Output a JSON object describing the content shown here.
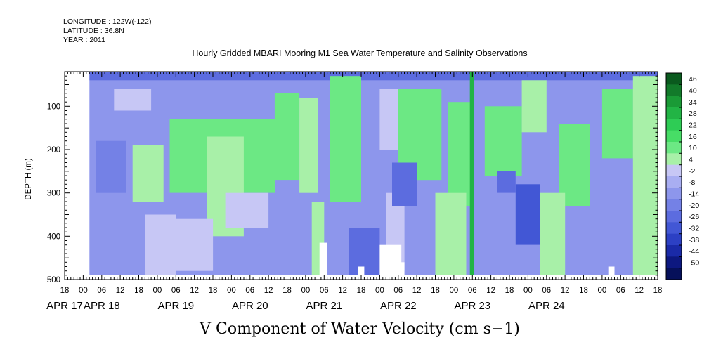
{
  "header": {
    "longitude": "LONGITUDE : 122W(-122)",
    "latitude": "LATITUDE : 36.8N",
    "year": "YEAR : 2011"
  },
  "chart_data": {
    "type": "heatmap",
    "title": "Hourly Gridded MBARI Mooring M1 Sea Water Temperature and Salinity Observations",
    "variable_title": "V Component of Water Velocity (cm s−1)",
    "ylabel": "DEPTH (m)",
    "ylim": [
      500,
      20
    ],
    "y_ticks": [
      "100",
      "200",
      "300",
      "400",
      "500"
    ],
    "y_tick_values": [
      100,
      200,
      300,
      400,
      500
    ],
    "x_range_hours": [
      -6,
      186
    ],
    "x_hour_ticks": [
      "18",
      "00",
      "06",
      "12",
      "18",
      "00",
      "06",
      "12",
      "18",
      "00",
      "06",
      "12",
      "18",
      "00",
      "06",
      "12",
      "18",
      "00",
      "06",
      "12",
      "18",
      "00",
      "06",
      "12",
      "18",
      "00",
      "06",
      "12",
      "18",
      "00",
      "06",
      "12",
      "18"
    ],
    "x_day_labels": [
      {
        "label": "APR 17",
        "hour": -6
      },
      {
        "label": "APR 18",
        "hour": 6
      },
      {
        "label": "APR 19",
        "hour": 30
      },
      {
        "label": "APR 20",
        "hour": 54
      },
      {
        "label": "APR 21",
        "hour": 78
      },
      {
        "label": "APR 22",
        "hour": 102
      },
      {
        "label": "APR 23",
        "hour": 126
      },
      {
        "label": "APR 24",
        "hour": 150
      }
    ],
    "data_start_hour": 2,
    "data_depth_range": [
      20,
      490
    ],
    "colorbar_labels": [
      "46",
      "40",
      "34",
      "28",
      "22",
      "16",
      "10",
      "4",
      "-2",
      "-8",
      "-14",
      "-20",
      "-26",
      "-32",
      "-38",
      "-44",
      "-50"
    ],
    "colorbar_range": [
      -50,
      52
    ],
    "colorbar_colors": [
      "#0a5a1e",
      "#127a2a",
      "#1a9a36",
      "#22b445",
      "#2ecc55",
      "#47dd66",
      "#6ce884",
      "#a8f0a8",
      "#c7c7f5",
      "#a9aef2",
      "#8d96ec",
      "#7481e6",
      "#5c6cdf",
      "#4257d5",
      "#2c40c4",
      "#1a2aa8",
      "#0d1880",
      "#06105a"
    ],
    "approx_regions": [
      {
        "h0": 2,
        "h1": 186,
        "d0": 20,
        "d1": 490,
        "v": -8
      },
      {
        "h0": 2,
        "h1": 186,
        "d0": 20,
        "d1": 40,
        "v": -20
      },
      {
        "h0": 10,
        "h1": 22,
        "d0": 60,
        "d1": 110,
        "v": 5
      },
      {
        "h0": 16,
        "h1": 26,
        "d0": 190,
        "d1": 320,
        "v": 12
      },
      {
        "h0": 20,
        "h1": 30,
        "d0": 350,
        "d1": 490,
        "v": 6
      },
      {
        "h0": 28,
        "h1": 62,
        "d0": 130,
        "d1": 300,
        "v": 14
      },
      {
        "h0": 40,
        "h1": 52,
        "d0": 170,
        "d1": 400,
        "v": 12
      },
      {
        "h0": 46,
        "h1": 60,
        "d0": 300,
        "d1": 380,
        "v": 4
      },
      {
        "h0": 30,
        "h1": 42,
        "d0": 360,
        "d1": 480,
        "v": 6
      },
      {
        "h0": 62,
        "h1": 70,
        "d0": 70,
        "d1": 270,
        "v": 15
      },
      {
        "h0": 70,
        "h1": 76,
        "d0": 80,
        "d1": 300,
        "v": 10
      },
      {
        "h0": 80,
        "h1": 90,
        "d0": 30,
        "d1": 320,
        "v": 16
      },
      {
        "h0": 74,
        "h1": 78,
        "d0": 320,
        "d1": 490,
        "v": 8
      },
      {
        "h0": 96,
        "h1": 102,
        "d0": 60,
        "d1": 200,
        "v": 6
      },
      {
        "h0": 102,
        "h1": 116,
        "d0": 60,
        "d1": 270,
        "v": 14
      },
      {
        "h0": 98,
        "h1": 104,
        "d0": 300,
        "d1": 480,
        "v": 4
      },
      {
        "h0": 118,
        "h1": 126,
        "d0": 90,
        "d1": 330,
        "v": 14
      },
      {
        "h0": 125.2,
        "h1": 126.6,
        "d0": 20,
        "d1": 490,
        "v": 30
      },
      {
        "h0": 130,
        "h1": 142,
        "d0": 100,
        "d1": 260,
        "v": 14
      },
      {
        "h0": 142,
        "h1": 150,
        "d0": 40,
        "d1": 160,
        "v": 12
      },
      {
        "h0": 154,
        "h1": 164,
        "d0": 140,
        "d1": 330,
        "v": 14
      },
      {
        "h0": 168,
        "h1": 178,
        "d0": 60,
        "d1": 220,
        "v": 18
      },
      {
        "h0": 178,
        "h1": 186,
        "d0": 30,
        "d1": 490,
        "v": 8
      },
      {
        "h0": 114,
        "h1": 124,
        "d0": 300,
        "d1": 490,
        "v": 10
      },
      {
        "h0": 148,
        "h1": 156,
        "d0": 300,
        "d1": 490,
        "v": 8
      },
      {
        "h0": 86,
        "h1": 96,
        "d0": 380,
        "d1": 490,
        "v": -20
      },
      {
        "h0": 140,
        "h1": 148,
        "d0": 280,
        "d1": 420,
        "v": -22
      },
      {
        "h0": 134,
        "h1": 140,
        "d0": 250,
        "d1": 300,
        "v": -18
      },
      {
        "h0": 100,
        "h1": 108,
        "d0": 230,
        "d1": 330,
        "v": -16
      },
      {
        "h0": 4,
        "h1": 14,
        "d0": 180,
        "d1": 300,
        "v": -14
      }
    ],
    "missing_regions": [
      {
        "h0": 76.5,
        "h1": 79,
        "d0": 415,
        "d1": 490
      },
      {
        "h0": 89,
        "h1": 91,
        "d0": 470,
        "d1": 490
      },
      {
        "h0": 96,
        "h1": 103,
        "d0": 420,
        "d1": 490
      },
      {
        "h0": 101,
        "h1": 104,
        "d0": 460,
        "d1": 490
      },
      {
        "h0": 170,
        "h1": 172,
        "d0": 470,
        "d1": 490
      }
    ]
  }
}
